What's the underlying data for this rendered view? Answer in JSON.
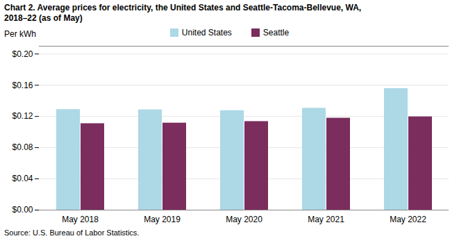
{
  "chart_data": {
    "type": "bar",
    "title": "Chart 2. Average prices for electricity, the United States and Seattle-Tacoma-Bellevue, WA,",
    "subtitle": "2018–22 (as of May)",
    "y_label": "Per kWh",
    "caption": "Source: U.S. Bureau of Labor Statistics.",
    "categories": [
      "May 2018",
      "May 2019",
      "May 2020",
      "May 2021",
      "May 2022"
    ],
    "series": [
      {
        "name": "United States",
        "color": "#add8e6",
        "values": [
          0.1288,
          0.1285,
          0.1275,
          0.1305,
          0.1558
        ]
      },
      {
        "name": "Seattle",
        "color": "#7b2d5e",
        "values": [
          0.1108,
          0.1115,
          0.1135,
          0.1178,
          0.1195
        ]
      }
    ],
    "ylim": [
      0,
      0.21
    ],
    "yticks": [
      {
        "value": 0.0,
        "label": "$0.00"
      },
      {
        "value": 0.04,
        "label": "$0.04"
      },
      {
        "value": 0.08,
        "label": "$0.08"
      },
      {
        "value": 0.12,
        "label": "$0.12"
      },
      {
        "value": 0.16,
        "label": "$0.16"
      },
      {
        "value": 0.2,
        "label": "$0.20"
      }
    ],
    "grid": true,
    "legend": "top"
  }
}
